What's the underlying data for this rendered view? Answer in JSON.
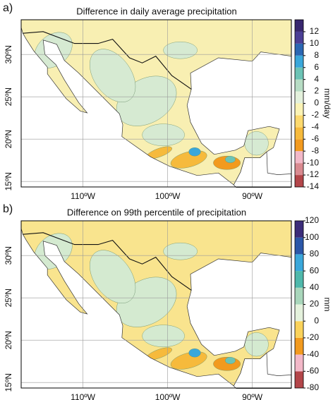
{
  "panels": [
    {
      "label": "a)",
      "title": "Difference in daily average precipitation",
      "colorbar": {
        "label": "mm/day",
        "lim": [
          -14,
          14
        ],
        "ticks": [
          12,
          10,
          8,
          6,
          4,
          2,
          0,
          -2,
          -4,
          -6,
          -8,
          -10,
          -12,
          -14
        ],
        "colors": [
          "#b3464a",
          "#d98a90",
          "#f2b8c8",
          "#f29a1e",
          "#f6ba3c",
          "#fcd96e",
          "#fbf3b5",
          "#e4f1dc",
          "#b7dcc4",
          "#6cc3b5",
          "#3aa7da",
          "#2b67b3",
          "#4b3f96",
          "#38276f"
        ]
      },
      "lat_ticks": [
        {
          "value": 30,
          "label": "30ºN"
        },
        {
          "value": 25,
          "label": "25ºN"
        },
        {
          "value": 20,
          "label": "20ºN"
        },
        {
          "value": 15,
          "label": "15ºN"
        }
      ],
      "lon_ticks": [
        {
          "value": -110,
          "label": "110ºW"
        },
        {
          "value": -100,
          "label": "100ºW"
        },
        {
          "value": -90,
          "label": "90ºW"
        }
      ]
    },
    {
      "label": "b)",
      "title": "Difference on 99th percentile of precipitation",
      "colorbar": {
        "label": "mm",
        "lim": [
          -80,
          120
        ],
        "ticks": [
          120,
          100,
          80,
          60,
          40,
          20,
          0,
          -20,
          -40,
          -60,
          -80
        ],
        "colors": [
          "#b3464a",
          "#f2b8c8",
          "#f29a1e",
          "#fad25a",
          "#e4f1dc",
          "#a9d6bb",
          "#4fb8ab",
          "#3aa7da",
          "#2b57a8",
          "#3b2c7a"
        ]
      },
      "lat_ticks": [
        {
          "value": 30,
          "label": "30ºN"
        },
        {
          "value": 25,
          "label": "25ºN"
        },
        {
          "value": 20,
          "label": "20ºN"
        },
        {
          "value": 15,
          "label": "15ºN"
        }
      ],
      "lon_ticks": [
        {
          "value": -110,
          "label": "110ºW"
        },
        {
          "value": -100,
          "label": "100ºW"
        },
        {
          "value": -90,
          "label": "90ºW"
        }
      ]
    }
  ]
}
